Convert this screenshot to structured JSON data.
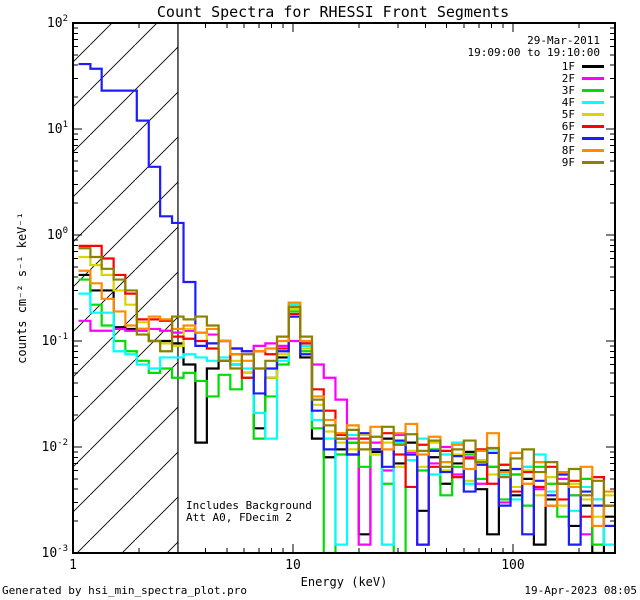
{
  "meta": {
    "date": "29-Mar-2011",
    "time_range": "19:09:00 to 19:10:00",
    "generated_by": "Generated by hsi_min_spectra_plot.pro",
    "timestamp": "19-Apr-2023 08:05"
  },
  "annotations": {
    "line1": "Includes Background",
    "line2": "Att A0, FDecim 2"
  },
  "chart_data": {
    "type": "line",
    "title": "Count Spectra for RHESSI Front Segments",
    "xlabel": "Energy (keV)",
    "ylabel": "counts cm⁻² s⁻¹ keV⁻¹",
    "xscale": "log",
    "yscale": "log",
    "xlim": [
      1,
      291
    ],
    "ylim": [
      0.001,
      100
    ],
    "grid": false,
    "legend_position": "top-right",
    "x_tick_values": [
      1,
      10,
      100
    ],
    "x_tick_labels": [
      "1",
      "10",
      "100"
    ],
    "y_tick_exponents": [
      2,
      1,
      0,
      -1,
      -2,
      -3
    ],
    "hatch_region": {
      "x_min": 1,
      "x_max": 3
    },
    "energy_bin_edges_keV": [
      1.06,
      1.2,
      1.35,
      1.53,
      1.73,
      1.95,
      2.21,
      2.49,
      2.82,
      3.18,
      3.6,
      4.06,
      4.59,
      5.19,
      5.86,
      6.63,
      7.49,
      8.46,
      9.56,
      10.8,
      12.2,
      13.8,
      15.6,
      17.6,
      19.9,
      22.5,
      25.4,
      28.7,
      32.5,
      36.7,
      41.4,
      46.8,
      52.9,
      59.8,
      67.6,
      76.3,
      86.3,
      97.5,
      110.2,
      124.5,
      140.7,
      159.0,
      179.6,
      203.0,
      229.4,
      259.2,
      292.9
    ],
    "series": [
      {
        "name": "1F",
        "color": "#000000",
        "values": [
          0.42,
          0.3,
          0.3,
          0.135,
          0.13,
          0.13,
          0.1,
          0.1,
          0.095,
          0.06,
          0.011,
          0.055,
          0.065,
          0.06,
          0.05,
          0.015,
          0.045,
          0.07,
          0.17,
          0.07,
          0.012,
          0.008,
          0.0095,
          0.011,
          0.0015,
          0.009,
          0.012,
          0.007,
          0.011,
          0.0025,
          0.008,
          0.0045,
          0.007,
          0.009,
          0.004,
          0.0015,
          0.006,
          0.0035,
          0.005,
          0.0012,
          0.0032,
          0.0045,
          0.0018,
          0.0028,
          0.001,
          0.0022
        ]
      },
      {
        "name": "2F",
        "color": "#ff00ff",
        "values": [
          0.155,
          0.125,
          0.125,
          0.13,
          0.125,
          0.125,
          0.13,
          0.125,
          0.12,
          0.125,
          0.12,
          0.115,
          0.1,
          0.085,
          0.08,
          0.09,
          0.095,
          0.09,
          0.1,
          0.095,
          0.06,
          0.045,
          0.028,
          0.012,
          0.0012,
          0.011,
          0.006,
          0.013,
          0.009,
          0.0012,
          0.007,
          0.01,
          0.0055,
          0.008,
          0.0045,
          0.0065,
          0.003,
          0.0055,
          0.0065,
          0.004,
          0.0028,
          0.005,
          0.0035,
          0.0015,
          0.0032,
          0.0018
        ]
      },
      {
        "name": "3F",
        "color": "#00dd00",
        "values": [
          0.38,
          0.22,
          0.14,
          0.1,
          0.08,
          0.065,
          0.05,
          0.055,
          0.045,
          0.05,
          0.042,
          0.03,
          0.048,
          0.035,
          0.045,
          0.012,
          0.03,
          0.06,
          0.19,
          0.08,
          0.015,
          0.001,
          0.0085,
          0.011,
          0.0065,
          0.0095,
          0.0045,
          0.001,
          0.0085,
          0.006,
          0.0095,
          0.0035,
          0.0065,
          0.0085,
          0.005,
          0.0065,
          0.0032,
          0.0055,
          0.0028,
          0.0065,
          0.0045,
          0.0022,
          0.0035,
          0.005,
          0.0012,
          0.0028
        ]
      },
      {
        "name": "4F",
        "color": "#00ffff",
        "values": [
          0.28,
          0.185,
          0.185,
          0.08,
          0.075,
          0.06,
          0.055,
          0.07,
          0.07,
          0.075,
          0.07,
          0.065,
          0.07,
          0.06,
          0.055,
          0.021,
          0.012,
          0.065,
          0.22,
          0.09,
          0.018,
          0.012,
          0.0012,
          0.013,
          0.011,
          0.0085,
          0.0012,
          0.011,
          0.0075,
          0.012,
          0.0055,
          0.0085,
          0.011,
          0.0045,
          0.0075,
          0.0095,
          0.0055,
          0.0032,
          0.0065,
          0.0085,
          0.0038,
          0.0055,
          0.0025,
          0.0042,
          0.0032,
          0.0012
        ]
      },
      {
        "name": "5F",
        "color": "#d6d600",
        "values": [
          0.62,
          0.52,
          0.42,
          0.3,
          0.22,
          0.15,
          0.1,
          0.095,
          0.09,
          0.13,
          0.12,
          0.095,
          0.1,
          0.065,
          0.05,
          0.055,
          0.045,
          0.075,
          0.2,
          0.085,
          0.025,
          0.014,
          0.011,
          0.0095,
          0.013,
          0.0085,
          0.011,
          0.0065,
          0.0092,
          0.0065,
          0.011,
          0.006,
          0.0085,
          0.0048,
          0.0075,
          0.0055,
          0.0068,
          0.0042,
          0.006,
          0.0035,
          0.0052,
          0.0028,
          0.0045,
          0.0032,
          0.0022,
          0.0035
        ]
      },
      {
        "name": "6F",
        "color": "#ff0000",
        "values": [
          0.79,
          0.79,
          0.6,
          0.42,
          0.28,
          0.16,
          0.16,
          0.155,
          0.11,
          0.105,
          0.1,
          0.085,
          0.065,
          0.075,
          0.045,
          0.08,
          0.075,
          0.085,
          0.18,
          0.095,
          0.035,
          0.022,
          0.013,
          0.0085,
          0.012,
          0.0095,
          0.0135,
          0.0085,
          0.0042,
          0.0105,
          0.0065,
          0.0092,
          0.0052,
          0.0078,
          0.0095,
          0.0045,
          0.0068,
          0.0038,
          0.0058,
          0.0042,
          0.0065,
          0.0032,
          0.0048,
          0.0022,
          0.0052,
          0.0028
        ]
      },
      {
        "name": "7F",
        "color": "#1c1cff",
        "values": [
          41,
          37,
          23,
          23,
          23,
          12,
          4.4,
          1.5,
          1.3,
          0.36,
          0.09,
          0.095,
          0.1,
          0.085,
          0.08,
          0.032,
          0.055,
          0.08,
          0.17,
          0.075,
          0.022,
          0.0095,
          0.012,
          0.0085,
          0.0135,
          0.0095,
          0.0065,
          0.0115,
          0.0085,
          0.0012,
          0.0092,
          0.0058,
          0.0082,
          0.0038,
          0.0068,
          0.0088,
          0.0028,
          0.0062,
          0.0015,
          0.0048,
          0.0035,
          0.0055,
          0.0012,
          0.0038,
          0.0028,
          0.0018
        ]
      },
      {
        "name": "8F",
        "color": "#ff8c00",
        "values": [
          0.46,
          0.35,
          0.25,
          0.19,
          0.14,
          0.13,
          0.17,
          0.16,
          0.13,
          0.14,
          0.12,
          0.13,
          0.1,
          0.075,
          0.065,
          0.08,
          0.085,
          0.1,
          0.23,
          0.1,
          0.03,
          0.018,
          0.0135,
          0.016,
          0.011,
          0.0155,
          0.0095,
          0.0135,
          0.0165,
          0.0085,
          0.0125,
          0.0072,
          0.0105,
          0.0062,
          0.0092,
          0.0135,
          0.0058,
          0.0088,
          0.0045,
          0.0072,
          0.0028,
          0.0058,
          0.0042,
          0.0065,
          0.0018,
          0.0038
        ]
      },
      {
        "name": "9F",
        "color": "#8b8000",
        "values": [
          0.75,
          0.62,
          0.48,
          0.38,
          0.3,
          0.115,
          0.1,
          0.08,
          0.17,
          0.16,
          0.17,
          0.14,
          0.065,
          0.055,
          0.075,
          0.055,
          0.065,
          0.11,
          0.21,
          0.11,
          0.028,
          0.016,
          0.012,
          0.0145,
          0.0095,
          0.0125,
          0.0155,
          0.0105,
          0.0132,
          0.0092,
          0.0115,
          0.0065,
          0.0095,
          0.0115,
          0.0072,
          0.0098,
          0.0052,
          0.0078,
          0.0095,
          0.0058,
          0.0072,
          0.0045,
          0.0062,
          0.0035,
          0.0048,
          0.0028
        ]
      }
    ]
  }
}
